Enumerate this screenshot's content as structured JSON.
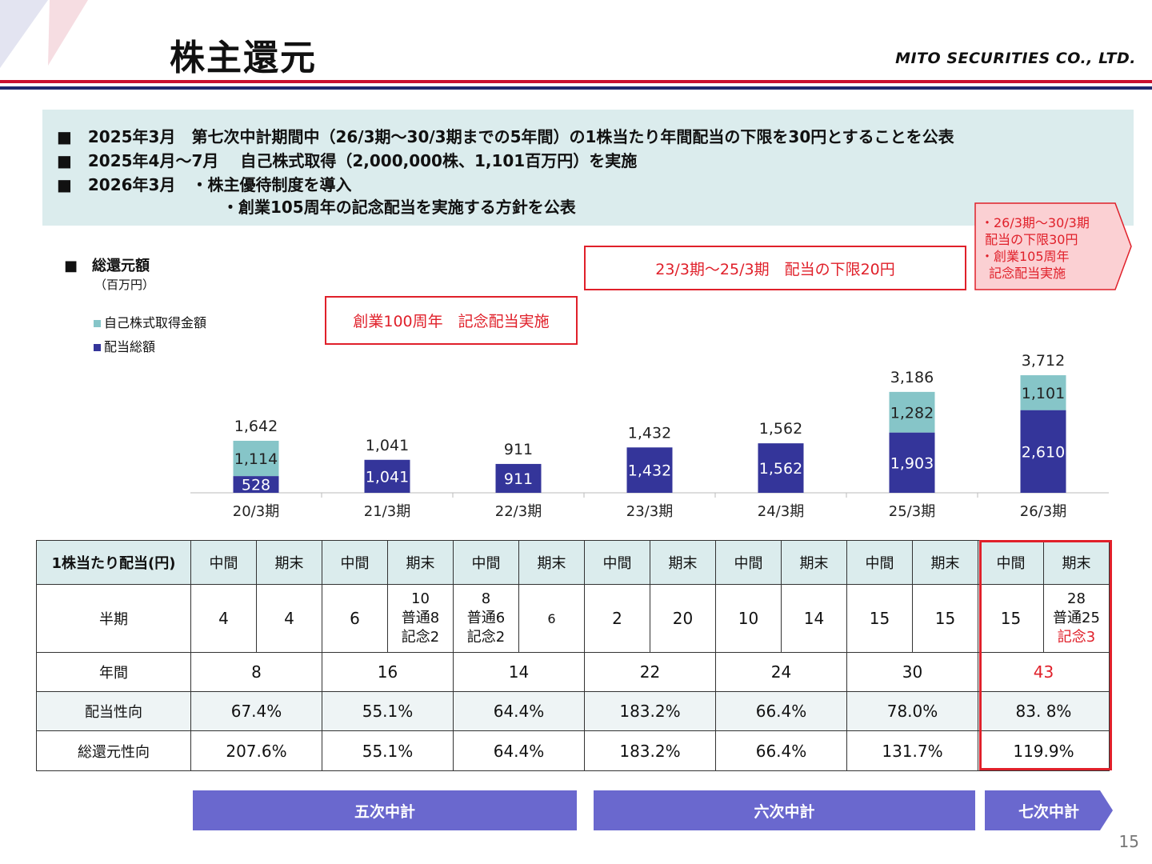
{
  "header": {
    "title": "株主還元",
    "logo": "MITO SECURITIES CO., LTD."
  },
  "summary": [
    "■　2025年3月　第七次中計期間中（26/3期～30/3期までの5年間）の1株当たり年間配当の下限を30円とすることを公表",
    "■　2025年4月～7月　 自己株式取得（2,000,000株、1,101百万円）を実施",
    "■　2026年3月　・株主優待制度を導入",
    "　　　　　　　　　　 ・創業105周年の記念配当を実施する方針を公表"
  ],
  "chart_header": {
    "title": "■　総還元額",
    "unit": "（百万円）",
    "legend_buyback": "自己株式取得金額",
    "legend_dividend": "配当総額"
  },
  "callouts": {
    "anniv100": "創業100周年　記念配当実施",
    "floor20": "23/3期～25/3期　配当の下限20円",
    "next": "・26/3期～30/3期\n 配当の下限30円\n・創業105周年\n  記念配当実施"
  },
  "chart_data": {
    "type": "bar",
    "stacked": true,
    "categories": [
      "20/3期",
      "21/3期",
      "22/3期",
      "23/3期",
      "24/3期",
      "25/3期",
      "26/3期"
    ],
    "series": [
      {
        "name": "配当総額",
        "values": [
          528,
          1041,
          911,
          1432,
          1562,
          1903,
          2610
        ],
        "value_labels": [
          "528",
          "1,041",
          "911",
          "1,432",
          "1,562",
          "1,903",
          "2,610"
        ]
      },
      {
        "name": "自己株式取得金額",
        "values": [
          1114,
          0,
          0,
          0,
          0,
          1282,
          1101
        ],
        "value_labels": [
          "1,114",
          "",
          "",
          "",
          "",
          "1,282",
          "1,101"
        ]
      }
    ],
    "totals": [
      1642,
      1041,
      911,
      1432,
      1562,
      3186,
      3712
    ],
    "total_labels": [
      "1,642",
      "1,041",
      "911",
      "1,432",
      "1,562",
      "3,186",
      "3,712"
    ],
    "ylim": [
      0,
      4000
    ],
    "grid": false,
    "legend_position": "top-left",
    "colors": {
      "dividend": "#34359a",
      "buyback": "#86c5c8"
    }
  },
  "table": {
    "head": {
      "label": "1株当たり配当(円)",
      "cells": [
        "中間",
        "期末",
        "中間",
        "期末",
        "中間",
        "期末",
        "中間",
        "期末",
        "中間",
        "期末",
        "中間",
        "期末",
        "中間",
        "期末"
      ]
    },
    "half": {
      "label": "半期",
      "cells": [
        [
          "4"
        ],
        [
          "4"
        ],
        [
          "6"
        ],
        [
          "10",
          "普通8",
          "記念2"
        ],
        [
          "8",
          "普通6",
          "記念2"
        ],
        [
          "6"
        ],
        [
          "2"
        ],
        [
          "20"
        ],
        [
          "10"
        ],
        [
          "14"
        ],
        [
          "15"
        ],
        [
          "15"
        ],
        [
          "15"
        ],
        [
          "28",
          "普通25",
          "記念3"
        ]
      ]
    },
    "annual": {
      "label": "年間",
      "cells": [
        "8",
        "16",
        "14",
        "22",
        "24",
        "30",
        "43"
      ]
    },
    "payout": {
      "label": "配当性向",
      "cells": [
        "67.4%",
        "55.1%",
        "64.4%",
        "183.2%",
        "66.4%",
        "78.0%",
        "83. 8%"
      ]
    },
    "total": {
      "label": "総還元性向",
      "cells": [
        "207.6%",
        "55.1%",
        "64.4%",
        "183.2%",
        "66.4%",
        "131.7%",
        "119.9%"
      ]
    }
  },
  "plans": {
    "fifth": "五次中計",
    "sixth": "六次中計",
    "seventh": "七次中計"
  },
  "page_number": "15",
  "colors": {
    "accent_red": "#e0202a",
    "navy": "#1f2a6e",
    "plan_purple": "#6a68ce",
    "box_bg": "#dbeced"
  }
}
